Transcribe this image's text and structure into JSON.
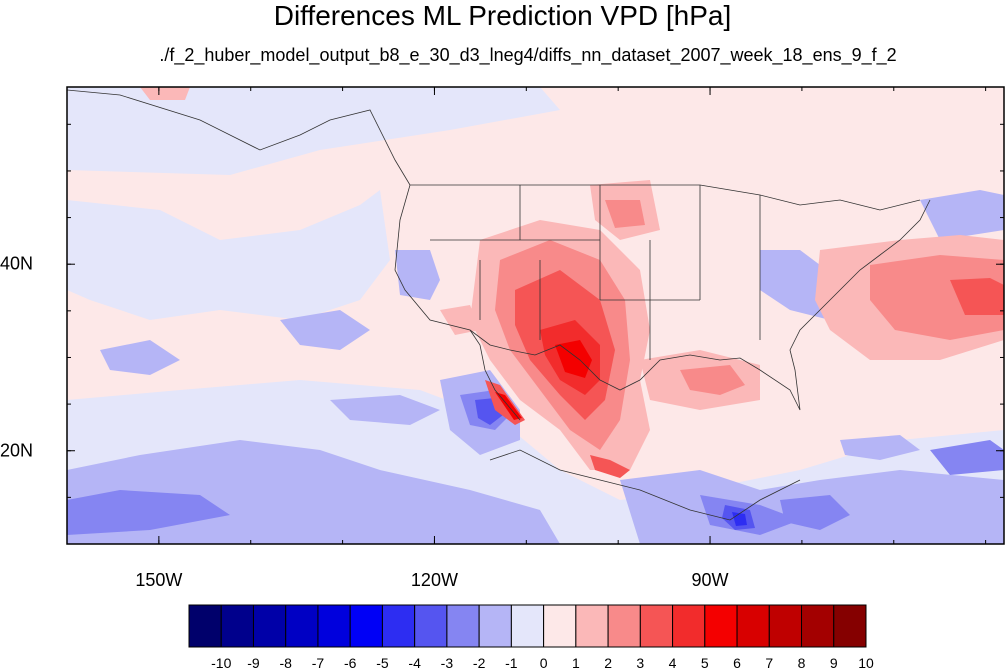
{
  "title": "Differences ML Prediction VPD [hPa]",
  "subtitle": "./f_2_huber_model_output_b8_e_30_d3_lneg4/diffs_nn_dataset_2007_week_18_ens_9_f_2",
  "map": {
    "lon_range": [
      -160,
      -58
    ],
    "lat_range": [
      10,
      59
    ],
    "lon_ticks": [
      {
        "value": -150,
        "label": "150W"
      },
      {
        "value": -120,
        "label": "120W"
      },
      {
        "value": -90,
        "label": "90W"
      }
    ],
    "lat_ticks": [
      {
        "value": 40,
        "label": "40N"
      },
      {
        "value": 20,
        "label": "20N"
      }
    ],
    "background_color": "#fde8e8"
  },
  "colorbar": {
    "labels": [
      "-10",
      "-9",
      "-8",
      "-7",
      "-6",
      "-5",
      "-4",
      "-3",
      "-2",
      "-1",
      "0",
      "1",
      "2",
      "3",
      "4",
      "5",
      "6",
      "7",
      "8",
      "9",
      "10"
    ],
    "colors": [
      "#00006b",
      "#00008c",
      "#0000a8",
      "#0000c4",
      "#0000dd",
      "#0000f6",
      "#2d2df2",
      "#5555f0",
      "#8585f2",
      "#b5b5f6",
      "#e4e6fa",
      "#fde8e8",
      "#fbb8b8",
      "#f88a8a",
      "#f55555",
      "#f22c2c",
      "#f40000",
      "#d80000",
      "#bf0000",
      "#a30000",
      "#850000"
    ]
  }
}
